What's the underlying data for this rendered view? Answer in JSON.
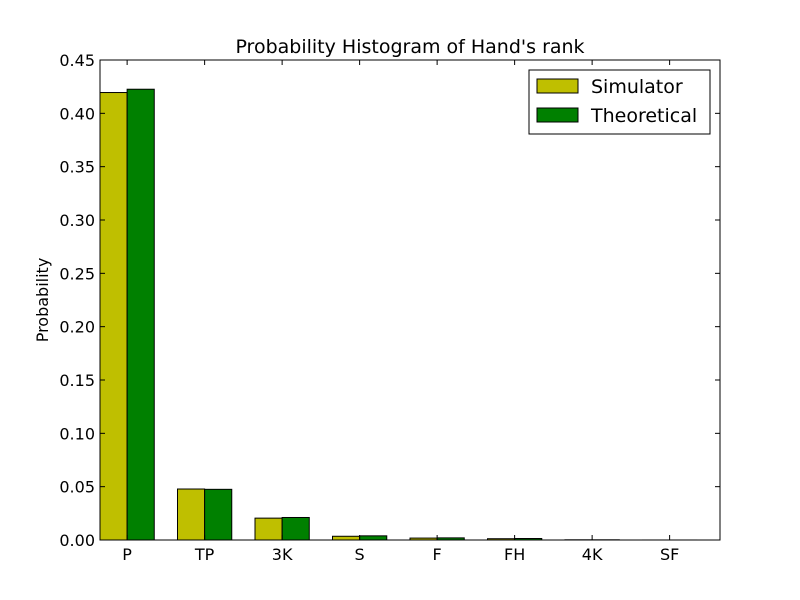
{
  "chart_data": {
    "type": "bar",
    "title": "Probability Histogram of Hand's rank",
    "xlabel": "",
    "ylabel": "Probability",
    "categories": [
      "P",
      "TP",
      "3K",
      "S",
      "F",
      "FH",
      "4K",
      "SF"
    ],
    "series": [
      {
        "name": "Simulator",
        "color": "#bfbf00",
        "values": [
          0.4195,
          0.0478,
          0.0205,
          0.0035,
          0.0018,
          0.0012,
          0.0002,
          2e-05
        ]
      },
      {
        "name": "Theoretical",
        "color": "#008000",
        "values": [
          0.4226,
          0.0475,
          0.0211,
          0.0039,
          0.002,
          0.0014,
          0.0002,
          1e-05
        ]
      }
    ],
    "ylim": [
      0,
      0.45
    ],
    "yticks": [
      "0.00",
      "0.05",
      "0.10",
      "0.15",
      "0.20",
      "0.25",
      "0.30",
      "0.35",
      "0.40",
      "0.45"
    ],
    "grid": false,
    "legend_position": "top-right"
  }
}
